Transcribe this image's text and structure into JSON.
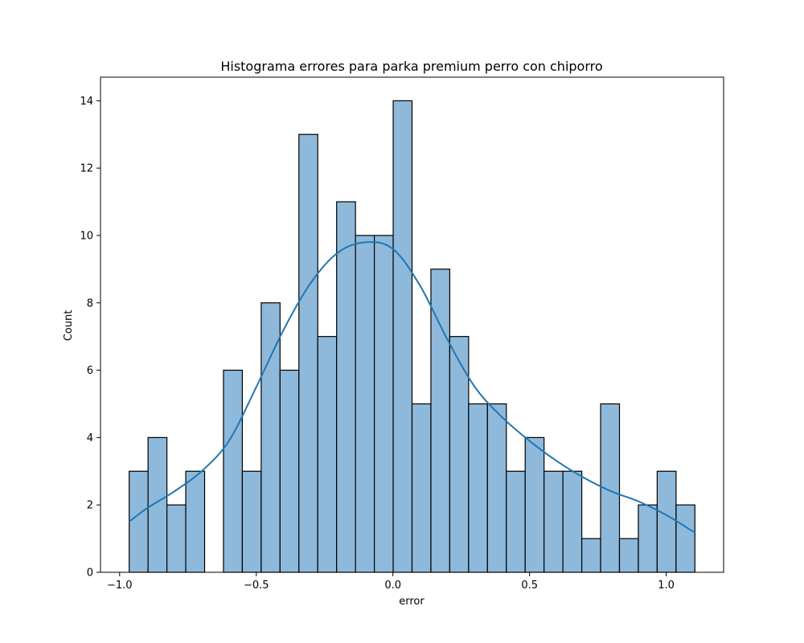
{
  "chart_data": {
    "type": "bar",
    "title": "Histograma errores para parka premium perro con chiporro",
    "xlabel": "error",
    "ylabel": "Count",
    "xlim": [
      -1.07,
      1.21
    ],
    "ylim": [
      0,
      14.7
    ],
    "x_ticks": [
      -1.0,
      -0.5,
      0.0,
      0.5,
      1.0
    ],
    "x_tick_labels": [
      "−1.0",
      "−0.5",
      "0.0",
      "0.5",
      "1.0"
    ],
    "y_ticks": [
      0,
      2,
      4,
      6,
      8,
      10,
      12,
      14
    ],
    "y_tick_labels": [
      "0",
      "2",
      "4",
      "6",
      "8",
      "10",
      "12",
      "14"
    ],
    "grid": false,
    "bins": {
      "start": -0.965,
      "width": 0.069,
      "counts": [
        3,
        4,
        2,
        3,
        0,
        6,
        3,
        8,
        6,
        13,
        7,
        11,
        10,
        10,
        14,
        5,
        9,
        7,
        5,
        5,
        3,
        4,
        3,
        3,
        1,
        5,
        1,
        2,
        3,
        2
      ]
    },
    "kde": {
      "x": [
        -0.965,
        -0.9,
        -0.8,
        -0.7,
        -0.6,
        -0.5,
        -0.4,
        -0.3,
        -0.2,
        -0.1,
        0.0,
        0.1,
        0.2,
        0.3,
        0.4,
        0.5,
        0.6,
        0.7,
        0.8,
        0.9,
        1.0,
        1.1
      ],
      "y": [
        1.5,
        1.9,
        2.4,
        3.0,
        3.9,
        5.5,
        7.2,
        8.6,
        9.5,
        9.8,
        9.6,
        8.5,
        6.9,
        5.5,
        4.6,
        3.9,
        3.3,
        2.8,
        2.4,
        2.1,
        1.7,
        1.2
      ]
    },
    "colors": {
      "bar_fill": "#8fb9da",
      "bar_edge": "#000000",
      "kde_line": "#1f77b4"
    }
  }
}
